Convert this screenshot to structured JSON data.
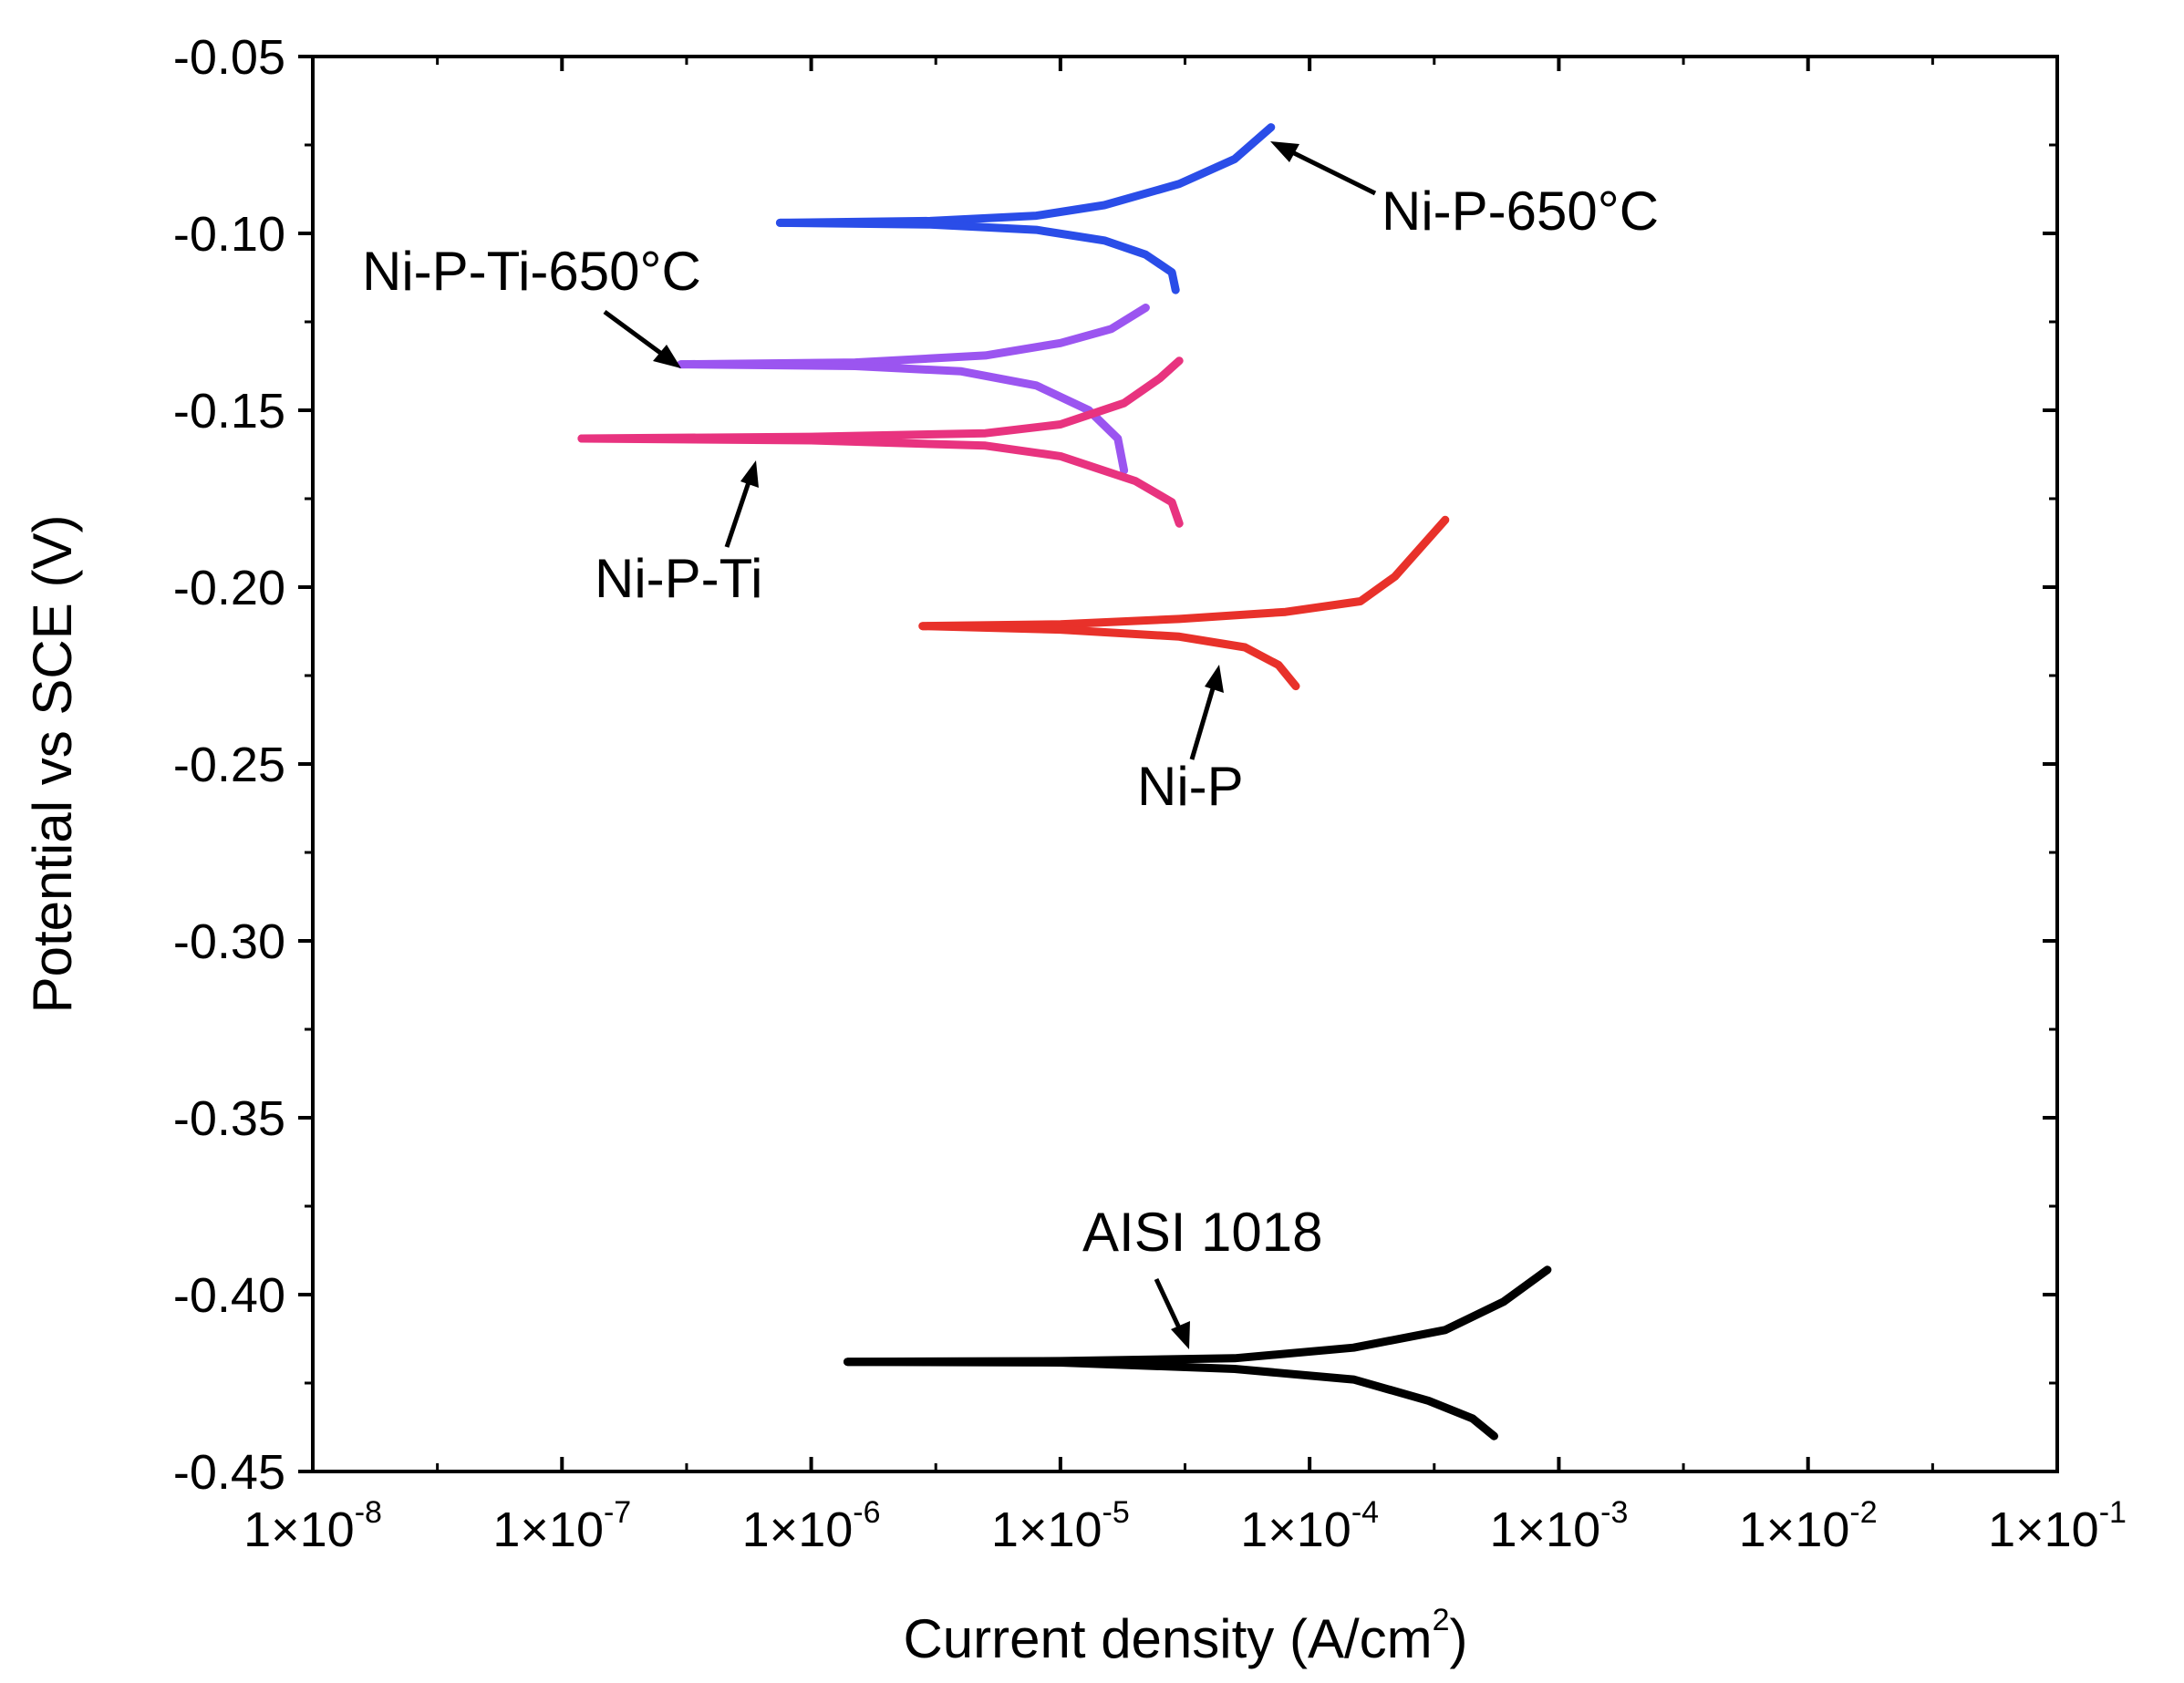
{
  "chart_data": {
    "type": "line",
    "title": "",
    "xlabel": "Current density (A/cm",
    "xlabel_sup": "2",
    "xlabel_end": ")",
    "ylabel": "Potential vs SCE (V)",
    "xscale": "log",
    "xlim": [
      1e-08,
      0.1
    ],
    "ylim": [
      -0.45,
      -0.05
    ],
    "x_ticks": [
      {
        "base": "1×10",
        "exp": "-8",
        "value": 1e-08
      },
      {
        "base": "1×10",
        "exp": "-7",
        "value": 1e-07
      },
      {
        "base": "1×10",
        "exp": "-6",
        "value": 1e-06
      },
      {
        "base": "1×10",
        "exp": "-5",
        "value": 1e-05
      },
      {
        "base": "1×10",
        "exp": "-4",
        "value": 0.0001
      },
      {
        "base": "1×10",
        "exp": "-3",
        "value": 0.001
      },
      {
        "base": "1×10",
        "exp": "-2",
        "value": 0.01
      },
      {
        "base": "1×10",
        "exp": "-1",
        "value": 0.1
      }
    ],
    "y_ticks": [
      {
        "label": "-0.05",
        "value": -0.05
      },
      {
        "label": "-0.10",
        "value": -0.1
      },
      {
        "label": "-0.15",
        "value": -0.15
      },
      {
        "label": "-0.20",
        "value": -0.2
      },
      {
        "label": "-0.25",
        "value": -0.25
      },
      {
        "label": "-0.30",
        "value": -0.3
      },
      {
        "label": "-0.35",
        "value": -0.35
      },
      {
        "label": "-0.40",
        "value": -0.4
      },
      {
        "label": "-0.45",
        "value": -0.45
      }
    ],
    "grid": false,
    "series": [
      {
        "name": "Ni-P-650°C",
        "color": "#2a4de8",
        "anodic": [
          [
            7.5e-07,
            -0.097
          ],
          [
            3e-06,
            -0.0965
          ],
          [
            8e-06,
            -0.095
          ],
          [
            1.5e-05,
            -0.092
          ],
          [
            3e-05,
            -0.086
          ],
          [
            5e-05,
            -0.079
          ],
          [
            7e-05,
            -0.07
          ]
        ],
        "cathodic": [
          [
            7.5e-07,
            -0.097
          ],
          [
            3e-06,
            -0.0975
          ],
          [
            8e-06,
            -0.099
          ],
          [
            1.5e-05,
            -0.102
          ],
          [
            2.2e-05,
            -0.106
          ],
          [
            2.8e-05,
            -0.111
          ],
          [
            2.9e-05,
            -0.116
          ]
        ]
      },
      {
        "name": "Ni-P-Ti-650°C",
        "color": "#9b55f0",
        "anodic": [
          [
            3e-07,
            -0.137
          ],
          [
            1.5e-06,
            -0.1365
          ],
          [
            5e-06,
            -0.1345
          ],
          [
            1e-05,
            -0.131
          ],
          [
            1.6e-05,
            -0.127
          ],
          [
            2.2e-05,
            -0.121
          ]
        ],
        "cathodic": [
          [
            3e-07,
            -0.137
          ],
          [
            1.5e-06,
            -0.1375
          ],
          [
            4e-06,
            -0.139
          ],
          [
            8e-06,
            -0.143
          ],
          [
            1.3e-05,
            -0.15
          ],
          [
            1.7e-05,
            -0.158
          ],
          [
            1.8e-05,
            -0.167
          ]
        ]
      },
      {
        "name": "Ni-P-Ti",
        "color": "#e8337f",
        "anodic": [
          [
            1.2e-07,
            -0.158
          ],
          [
            1e-06,
            -0.1575
          ],
          [
            5e-06,
            -0.1565
          ],
          [
            1e-05,
            -0.154
          ],
          [
            1.8e-05,
            -0.148
          ],
          [
            2.5e-05,
            -0.141
          ],
          [
            3e-05,
            -0.136
          ]
        ],
        "cathodic": [
          [
            1.2e-07,
            -0.158
          ],
          [
            1e-06,
            -0.1585
          ],
          [
            5e-06,
            -0.16
          ],
          [
            1e-05,
            -0.163
          ],
          [
            2e-05,
            -0.17
          ],
          [
            2.8e-05,
            -0.176
          ],
          [
            3e-05,
            -0.182
          ]
        ]
      },
      {
        "name": "Ni-P",
        "color": "#e8312a",
        "anodic": [
          [
            2.8e-06,
            -0.211
          ],
          [
            1e-05,
            -0.2105
          ],
          [
            3e-05,
            -0.209
          ],
          [
            8e-05,
            -0.207
          ],
          [
            0.00016,
            -0.204
          ],
          [
            0.00022,
            -0.197
          ],
          [
            0.00035,
            -0.181
          ]
        ],
        "cathodic": [
          [
            2.8e-06,
            -0.211
          ],
          [
            1e-05,
            -0.212
          ],
          [
            3e-05,
            -0.214
          ],
          [
            5.5e-05,
            -0.217
          ],
          [
            7.5e-05,
            -0.222
          ],
          [
            8.8e-05,
            -0.228
          ]
        ]
      },
      {
        "name": "AISI 1018",
        "color": "#000000",
        "anodic": [
          [
            1.4e-06,
            -0.419
          ],
          [
            1e-05,
            -0.4188
          ],
          [
            5e-05,
            -0.418
          ],
          [
            0.00015,
            -0.415
          ],
          [
            0.00035,
            -0.41
          ],
          [
            0.0006,
            -0.402
          ],
          [
            0.0009,
            -0.393
          ]
        ],
        "cathodic": [
          [
            1.4e-06,
            -0.419
          ],
          [
            1e-05,
            -0.4192
          ],
          [
            5e-05,
            -0.421
          ],
          [
            0.00015,
            -0.424
          ],
          [
            0.0003,
            -0.43
          ],
          [
            0.00045,
            -0.435
          ],
          [
            0.00055,
            -0.44
          ]
        ]
      }
    ],
    "annotations": [
      {
        "text": "Ni-P-650°C",
        "series": "Ni-P-650°C"
      },
      {
        "text": "Ni-P-Ti-650°C",
        "series": "Ni-P-Ti-650°C"
      },
      {
        "text": "Ni-P-Ti",
        "series": "Ni-P-Ti"
      },
      {
        "text": "Ni-P",
        "series": "Ni-P"
      },
      {
        "text": "AISI 1018",
        "series": "AISI 1018"
      }
    ]
  }
}
